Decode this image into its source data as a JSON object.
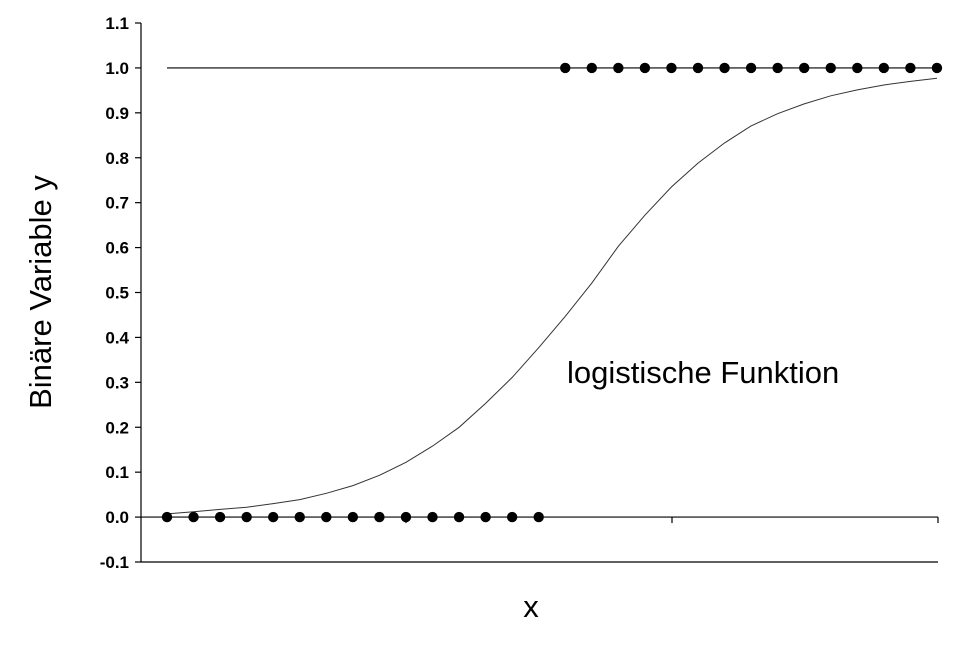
{
  "chart_data": {
    "type": "scatter",
    "title": "",
    "xlabel": "x",
    "ylabel": "Binäre Variable y",
    "ylim": [
      -0.1,
      1.1
    ],
    "y_ticks": [
      "1.1",
      "1.0",
      "0.9",
      "0.8",
      "0.7",
      "0.6",
      "0.5",
      "0.4",
      "0.3",
      "0.2",
      "0.1",
      "0.0",
      "-0.1"
    ],
    "x_ticks_labeled": false,
    "grid": false,
    "reference_line": {
      "y": 1.0
    },
    "annotation": "logistische Funktion",
    "series": [
      {
        "type": "scatter",
        "x": [
          1,
          2,
          3,
          4,
          5,
          6,
          7,
          8,
          9,
          10,
          11,
          12,
          13,
          14,
          15
        ],
        "y": [
          0,
          0,
          0,
          0,
          0,
          0,
          0,
          0,
          0,
          0,
          0,
          0,
          0,
          0,
          0
        ]
      },
      {
        "type": "scatter",
        "x": [
          16,
          17,
          18,
          19,
          20,
          21,
          22,
          23,
          24,
          25,
          26,
          27,
          28,
          29,
          30
        ],
        "y": [
          1,
          1,
          1,
          1,
          1,
          1,
          1,
          1,
          1,
          1,
          1,
          1,
          1,
          1,
          1
        ]
      },
      {
        "type": "line",
        "x": [
          1,
          2,
          3,
          4,
          5,
          6,
          7,
          8,
          9,
          10,
          11,
          12,
          13,
          14,
          15,
          16,
          17,
          18,
          19,
          20,
          21,
          22,
          23,
          24,
          25,
          26,
          27,
          28,
          29,
          30
        ],
        "y": [
          0.007,
          0.012,
          0.017,
          0.022,
          0.03,
          0.039,
          0.053,
          0.07,
          0.093,
          0.122,
          0.158,
          0.2,
          0.253,
          0.311,
          0.377,
          0.447,
          0.521,
          0.603,
          0.672,
          0.735,
          0.788,
          0.833,
          0.871,
          0.898,
          0.92,
          0.938,
          0.951,
          0.962,
          0.97,
          0.977
        ]
      }
    ]
  }
}
